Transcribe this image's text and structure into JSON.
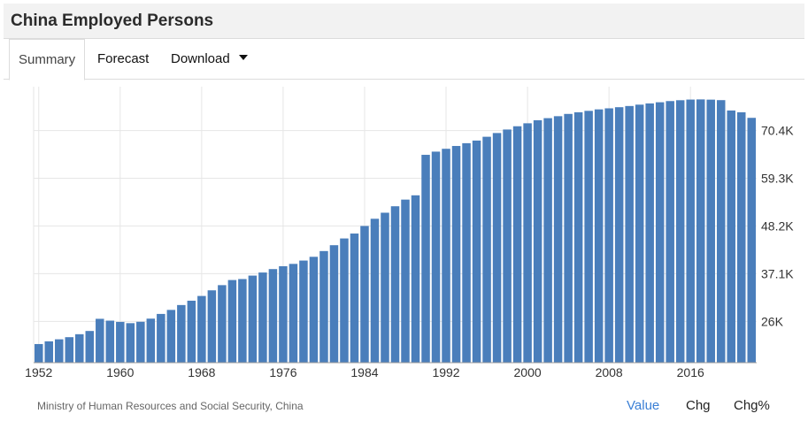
{
  "header": {
    "title": "China Employed Persons"
  },
  "tabs": [
    {
      "label": "Summary",
      "active": true
    },
    {
      "label": "Forecast",
      "active": false
    },
    {
      "label": "Download",
      "active": false,
      "has_dropdown": true
    }
  ],
  "footer": {
    "source": "Ministry of Human Resources and Social Security, China",
    "buttons": [
      {
        "label": "Value",
        "active": true
      },
      {
        "label": "Chg",
        "active": false
      },
      {
        "label": "Chg%",
        "active": false
      }
    ]
  },
  "colors": {
    "bar": "#4a7ebb",
    "grid": "#e6e6e6",
    "active_link": "#3a7fd5"
  },
  "chart_data": {
    "type": "bar",
    "title": "China Employed Persons",
    "xlabel": "",
    "ylabel": "",
    "x": [
      1952,
      1953,
      1954,
      1955,
      1956,
      1957,
      1958,
      1959,
      1960,
      1961,
      1962,
      1963,
      1964,
      1965,
      1966,
      1967,
      1968,
      1969,
      1970,
      1971,
      1972,
      1973,
      1974,
      1975,
      1976,
      1977,
      1978,
      1979,
      1980,
      1981,
      1982,
      1983,
      1984,
      1985,
      1986,
      1987,
      1988,
      1989,
      1990,
      1991,
      1992,
      1993,
      1994,
      1995,
      1996,
      1997,
      1998,
      1999,
      2000,
      2001,
      2002,
      2003,
      2004,
      2005,
      2006,
      2007,
      2008,
      2009,
      2010,
      2011,
      2012,
      2013,
      2014,
      2015,
      2016,
      2017,
      2018,
      2019,
      2020,
      2021,
      2022
    ],
    "series": [
      {
        "values": [
          20729,
          21364,
          21832,
          22328,
          23018,
          23771,
          26600,
          26173,
          25880,
          25590,
          25910,
          26640,
          27736,
          28670,
          29805,
          30814,
          31915,
          33225,
          34432,
          35620,
          35854,
          36652,
          37369,
          38168,
          38834,
          39377,
          40152,
          41024,
          42361,
          43725,
          45295,
          46436,
          48197,
          49873,
          51282,
          52783,
          54334,
          55329,
          64749,
          65491,
          66152,
          66808,
          67455,
          68065,
          68950,
          69820,
          70637,
          71394,
          72085,
          72797,
          73280,
          73736,
          74264,
          74647,
          74978,
          75321,
          75564,
          75828,
          76105,
          76420,
          76704,
          76977,
          77253,
          77451,
          77603,
          77640,
          77586,
          77471,
          75064,
          74652,
          73351
        ]
      }
    ],
    "x_ticks": [
      "1952",
      "1960",
      "1968",
      "1976",
      "1984",
      "1992",
      "2000",
      "2008",
      "2016"
    ],
    "y_ticks": [
      {
        "value": 26000,
        "label": "26K"
      },
      {
        "value": 37100,
        "label": "37.1K"
      },
      {
        "value": 48200,
        "label": "48.2K"
      },
      {
        "value": 59300,
        "label": "59.3K"
      },
      {
        "value": 70400,
        "label": "70.4K"
      }
    ],
    "ylim": [
      16400,
      80600
    ],
    "xlim": [
      1952,
      2022
    ],
    "y_axis_side": "right",
    "grid": true,
    "legend": "none"
  }
}
